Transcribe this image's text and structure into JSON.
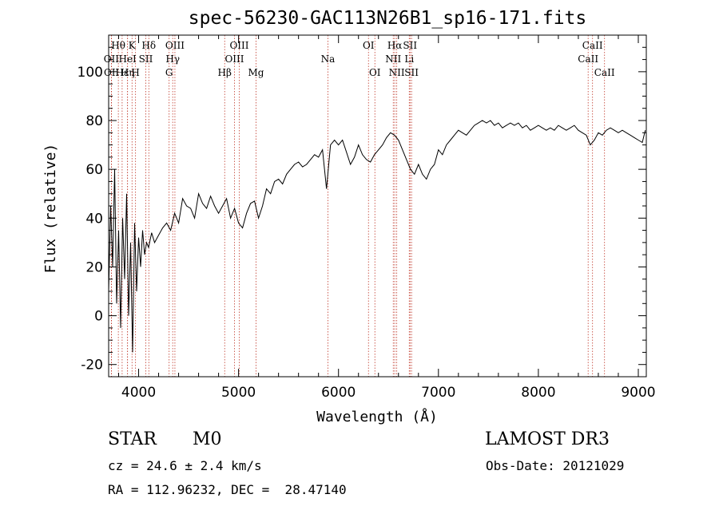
{
  "header": {
    "title": "spec-56230-GAC113N26B1_sp16-171.fits"
  },
  "footer": {
    "object_class": "STAR",
    "subclass": "M0",
    "survey": "LAMOST DR3",
    "cz_text": "cz = 24.6 ± 2.4 km/s",
    "obs_date_text": "Obs-Date: 20121029",
    "radec_text": "RA = 112.96232, DEC =  28.47140"
  },
  "chart_data": {
    "type": "line",
    "title": "spec-56230-GAC113N26B1_sp16-171.fits",
    "xlabel": "Wavelength (Å)",
    "ylabel": "Flux (relative)",
    "xlim": [
      3700,
      9080
    ],
    "ylim": [
      -25,
      115
    ],
    "xticks": [
      4000,
      5000,
      6000,
      7000,
      8000,
      9000
    ],
    "yticks": [
      -20,
      0,
      20,
      40,
      60,
      80,
      100
    ],
    "series": [
      {
        "name": "flux",
        "x": [
          3700,
          3720,
          3740,
          3760,
          3780,
          3800,
          3820,
          3840,
          3860,
          3880,
          3900,
          3920,
          3940,
          3960,
          3980,
          4000,
          4020,
          4040,
          4060,
          4080,
          4100,
          4130,
          4160,
          4200,
          4240,
          4280,
          4320,
          4360,
          4400,
          4440,
          4480,
          4520,
          4560,
          4600,
          4640,
          4680,
          4720,
          4760,
          4800,
          4840,
          4880,
          4920,
          4960,
          5000,
          5040,
          5080,
          5120,
          5160,
          5200,
          5240,
          5280,
          5320,
          5360,
          5400,
          5440,
          5480,
          5520,
          5560,
          5600,
          5640,
          5680,
          5720,
          5760,
          5800,
          5840,
          5880,
          5920,
          5960,
          6000,
          6040,
          6080,
          6120,
          6160,
          6200,
          6240,
          6280,
          6320,
          6360,
          6400,
          6440,
          6480,
          6520,
          6560,
          6600,
          6640,
          6680,
          6720,
          6760,
          6800,
          6840,
          6880,
          6920,
          6960,
          7000,
          7040,
          7080,
          7120,
          7160,
          7200,
          7240,
          7280,
          7320,
          7360,
          7400,
          7440,
          7480,
          7520,
          7560,
          7600,
          7640,
          7680,
          7720,
          7760,
          7800,
          7840,
          7880,
          7920,
          7960,
          8000,
          8040,
          8080,
          8120,
          8160,
          8200,
          8240,
          8280,
          8320,
          8360,
          8400,
          8440,
          8480,
          8520,
          8560,
          8600,
          8640,
          8680,
          8720,
          8760,
          8800,
          8840,
          8880,
          8920,
          8960,
          9000,
          9040,
          9070
        ],
        "y": [
          10,
          45,
          20,
          60,
          5,
          35,
          -5,
          40,
          15,
          50,
          0,
          30,
          -15,
          38,
          10,
          32,
          20,
          35,
          25,
          30,
          28,
          34,
          30,
          33,
          36,
          38,
          35,
          42,
          38,
          48,
          45,
          44,
          40,
          50,
          46,
          44,
          49,
          45,
          42,
          45,
          48,
          40,
          44,
          38,
          36,
          42,
          46,
          47,
          40,
          45,
          52,
          50,
          55,
          56,
          54,
          58,
          60,
          62,
          63,
          61,
          62,
          64,
          66,
          65,
          68,
          52,
          70,
          72,
          70,
          72,
          67,
          62,
          65,
          70,
          66,
          64,
          63,
          66,
          68,
          70,
          73,
          75,
          74,
          72,
          68,
          64,
          60,
          58,
          62,
          58,
          56,
          60,
          62,
          68,
          66,
          70,
          72,
          74,
          76,
          75,
          74,
          76,
          78,
          79,
          80,
          79,
          80,
          78,
          79,
          77,
          78,
          79,
          78,
          79,
          77,
          78,
          76,
          77,
          78,
          77,
          76,
          77,
          76,
          78,
          77,
          76,
          77,
          78,
          76,
          75,
          74,
          70,
          72,
          75,
          74,
          76,
          77,
          76,
          75,
          76,
          75,
          74,
          73,
          72,
          71,
          76
        ]
      }
    ],
    "line_labels": [
      {
        "label": "Hθ",
        "x": 3797,
        "row": 1
      },
      {
        "label": "OII",
        "x": 3727,
        "row": 2
      },
      {
        "label": "OII",
        "x": 3729,
        "row": 3
      },
      {
        "label": "Hε",
        "x": 3835,
        "row": 3
      },
      {
        "label": "Hη",
        "x": 3889,
        "row": 3
      },
      {
        "label": "HeI",
        "x": 3889,
        "row": 2
      },
      {
        "label": "K",
        "x": 3934,
        "row": 1
      },
      {
        "label": "H",
        "x": 3969,
        "row": 3
      },
      {
        "label": "SII",
        "x": 4072,
        "row": 2
      },
      {
        "label": "Hδ",
        "x": 4102,
        "row": 1
      },
      {
        "label": "G",
        "x": 4305,
        "row": 3
      },
      {
        "label": "Hγ",
        "x": 4341,
        "row": 2
      },
      {
        "label": "OIII",
        "x": 4363,
        "row": 1
      },
      {
        "label": "Hβ",
        "x": 4861,
        "row": 3
      },
      {
        "label": "OIII",
        "x": 4959,
        "row": 2
      },
      {
        "label": "OIII",
        "x": 5007,
        "row": 1
      },
      {
        "label": "Mg",
        "x": 5175,
        "row": 3
      },
      {
        "label": "Na",
        "x": 5894,
        "row": 2
      },
      {
        "label": "OI",
        "x": 6300,
        "row": 1
      },
      {
        "label": "OI",
        "x": 6364,
        "row": 3
      },
      {
        "label": "NII",
        "x": 6548,
        "row": 2
      },
      {
        "label": "Hα",
        "x": 6563,
        "row": 1
      },
      {
        "label": "NII",
        "x": 6583,
        "row": 3
      },
      {
        "label": "Li",
        "x": 6708,
        "row": 2
      },
      {
        "label": "SII",
        "x": 6716,
        "row": 1
      },
      {
        "label": "SII",
        "x": 6731,
        "row": 3
      },
      {
        "label": "CaII",
        "x": 8498,
        "row": 2
      },
      {
        "label": "CaII",
        "x": 8542,
        "row": 1
      },
      {
        "label": "CaII",
        "x": 8662,
        "row": 3
      }
    ]
  }
}
